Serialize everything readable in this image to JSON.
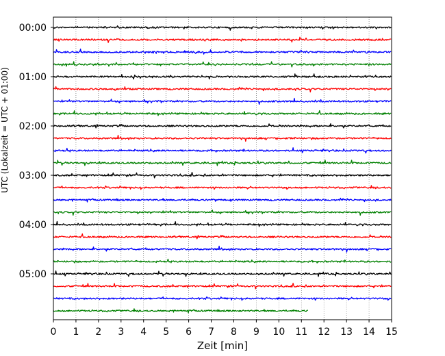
{
  "chart_data": {
    "type": "line",
    "title": "",
    "xlabel": "Zeit  [min]",
    "ylabel": "UTC (Lokalzeit = UTC + 01:00)",
    "xlim": [
      0,
      15
    ],
    "x_ticks": [
      "0",
      "1",
      "2",
      "3",
      "4",
      "5",
      "6",
      "7",
      "8",
      "9",
      "10",
      "11",
      "12",
      "13",
      "14",
      "15"
    ],
    "y_tick_labels": [
      "00:00",
      "01:00",
      "02:00",
      "03:00",
      "04:00",
      "05:00"
    ],
    "grid": "vertical dotted lines at each minute",
    "trace_colors": [
      "#000000",
      "#ff0000",
      "#0000ff",
      "#008000"
    ],
    "traces": [
      {
        "start": "00:00",
        "color": "#000000",
        "x_end": 15
      },
      {
        "start": "00:15",
        "color": "#ff0000",
        "x_end": 15
      },
      {
        "start": "00:30",
        "color": "#0000ff",
        "x_end": 15
      },
      {
        "start": "00:45",
        "color": "#008000",
        "x_end": 15
      },
      {
        "start": "01:00",
        "color": "#000000",
        "x_end": 15
      },
      {
        "start": "01:15",
        "color": "#ff0000",
        "x_end": 15
      },
      {
        "start": "01:30",
        "color": "#0000ff",
        "x_end": 15
      },
      {
        "start": "01:45",
        "color": "#008000",
        "x_end": 15
      },
      {
        "start": "02:00",
        "color": "#000000",
        "x_end": 15
      },
      {
        "start": "02:15",
        "color": "#ff0000",
        "x_end": 15
      },
      {
        "start": "02:30",
        "color": "#0000ff",
        "x_end": 15
      },
      {
        "start": "02:45",
        "color": "#008000",
        "x_end": 15
      },
      {
        "start": "03:00",
        "color": "#000000",
        "x_end": 15
      },
      {
        "start": "03:15",
        "color": "#ff0000",
        "x_end": 15
      },
      {
        "start": "03:30",
        "color": "#0000ff",
        "x_end": 15
      },
      {
        "start": "03:45",
        "color": "#008000",
        "x_end": 15
      },
      {
        "start": "04:00",
        "color": "#000000",
        "x_end": 15
      },
      {
        "start": "04:15",
        "color": "#ff0000",
        "x_end": 15
      },
      {
        "start": "04:30",
        "color": "#0000ff",
        "x_end": 15
      },
      {
        "start": "04:45",
        "color": "#008000",
        "x_end": 15
      },
      {
        "start": "05:00",
        "color": "#000000",
        "x_end": 15
      },
      {
        "start": "05:15",
        "color": "#ff0000",
        "x_end": 15
      },
      {
        "start": "05:30",
        "color": "#0000ff",
        "x_end": 15
      },
      {
        "start": "05:45",
        "color": "#008000",
        "x_end": 11.3
      }
    ]
  }
}
